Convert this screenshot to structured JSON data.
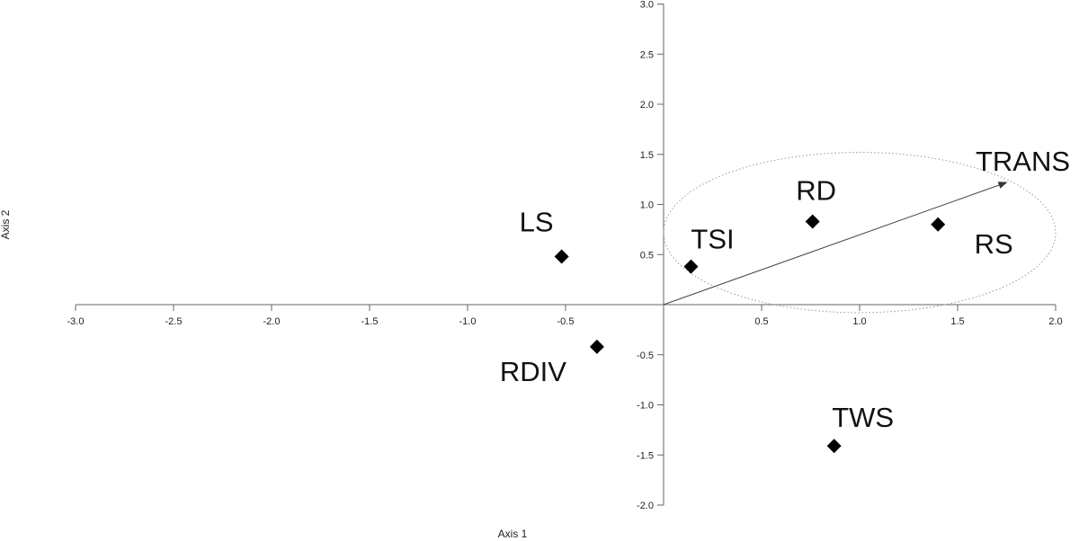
{
  "chart_data": {
    "type": "scatter",
    "xlabel": "Axis 1",
    "ylabel": "Axis 2",
    "xlim": [
      -3.0,
      2.0
    ],
    "ylim": [
      -2.0,
      3.0
    ],
    "x_ticks": [
      "-3.0",
      "-2.5",
      "-2.0",
      "-1.5",
      "-1.0",
      "-0.5",
      "0.5",
      "1.0",
      "1.5",
      "2.0"
    ],
    "y_ticks": [
      "3.0",
      "2.5",
      "2.0",
      "1.5",
      "1.0",
      "0.5",
      "-0.5",
      "-1.0",
      "-1.5",
      "-2.0"
    ],
    "grid": false,
    "marker": "diamond",
    "points": [
      {
        "label": "LS",
        "x": -0.52,
        "y": 0.48
      },
      {
        "label": "TSI",
        "x": 0.14,
        "y": 0.38
      },
      {
        "label": "RD",
        "x": 0.76,
        "y": 0.83
      },
      {
        "label": "RS",
        "x": 1.4,
        "y": 0.8
      },
      {
        "label": "RDIV",
        "x": -0.34,
        "y": -0.42
      },
      {
        "label": "TWS",
        "x": 0.87,
        "y": -1.41
      }
    ],
    "vector": {
      "label": "TRANS",
      "x": 1.75,
      "y": 1.22
    },
    "ellipse": {
      "cx": 1.0,
      "cy": 0.72,
      "rx": 1.0,
      "ry": 0.8
    }
  }
}
